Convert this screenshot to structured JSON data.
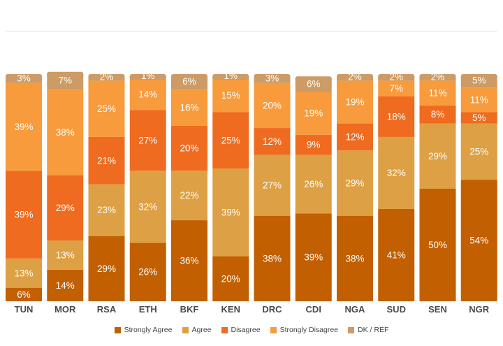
{
  "chart_data": {
    "type": "bar",
    "stacked": true,
    "orientation": "vertical",
    "categories": [
      "TUN",
      "MOR",
      "RSA",
      "ETH",
      "BKF",
      "KEN",
      "DRC",
      "CDI",
      "NGA",
      "SUD",
      "SEN",
      "NGR"
    ],
    "series": [
      {
        "name": "Strongly Agree",
        "color": "#c25f00",
        "values": [
          6,
          14,
          29,
          26,
          36,
          20,
          38,
          39,
          38,
          41,
          50,
          54
        ]
      },
      {
        "name": "Agree",
        "color": "#dea044",
        "values": [
          13,
          13,
          23,
          32,
          22,
          39,
          27,
          26,
          29,
          32,
          29,
          25
        ]
      },
      {
        "name": "Disagree",
        "color": "#ee6b20",
        "values": [
          39,
          29,
          21,
          27,
          20,
          25,
          12,
          9,
          12,
          18,
          8,
          5
        ]
      },
      {
        "name": "Strongly Disagree",
        "color": "#f79b3c",
        "values": [
          39,
          38,
          25,
          14,
          16,
          15,
          20,
          19,
          19,
          7,
          11,
          11
        ]
      },
      {
        "name": "DK / REF",
        "color": "#cd9b66",
        "values": [
          3,
          7,
          2,
          1,
          6,
          1,
          3,
          6,
          2,
          2,
          2,
          5
        ]
      }
    ],
    "value_suffix": "%",
    "ylim": [
      0,
      100
    ],
    "grid": false,
    "legend_position": "bottom"
  }
}
